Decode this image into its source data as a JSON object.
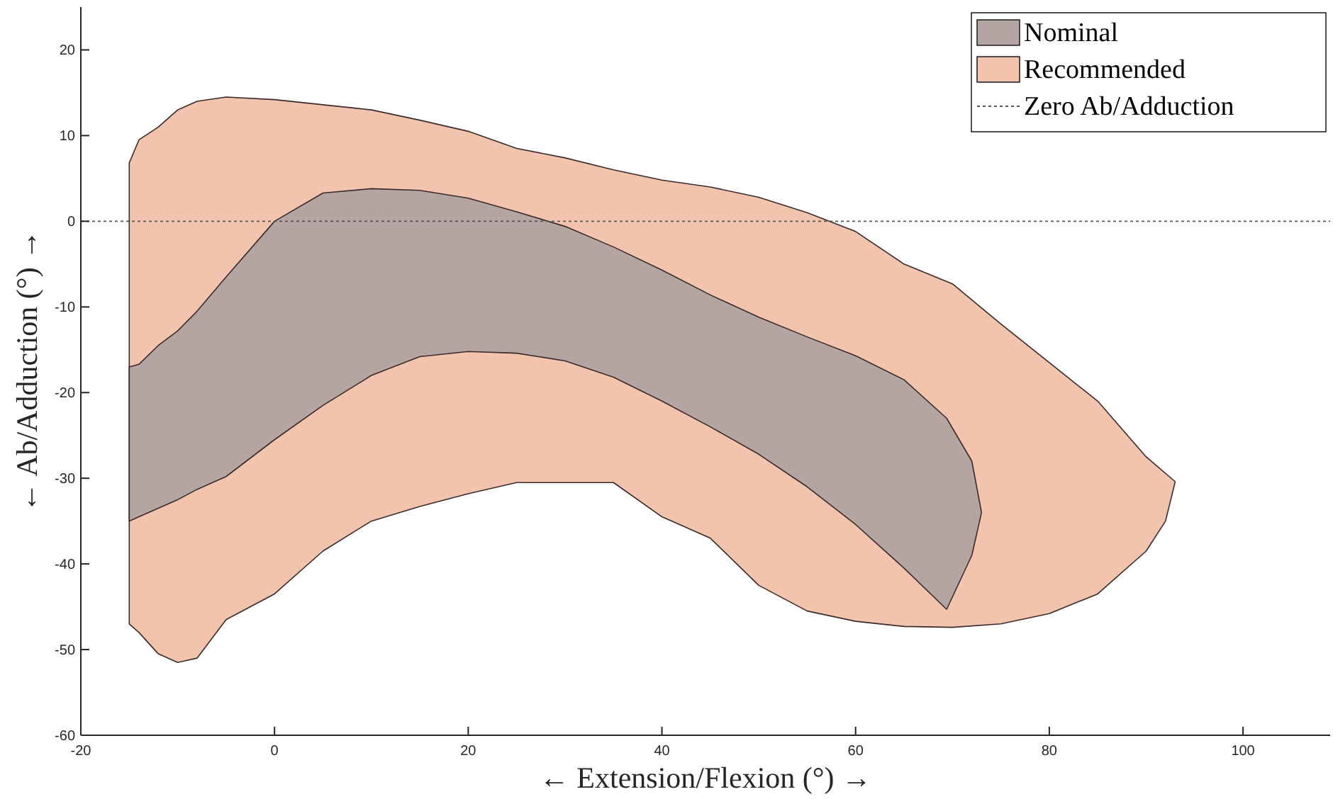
{
  "chart_data": {
    "type": "area",
    "xlabel": "← Extension/Flexion (°) →",
    "ylabel": "← Ab/Adduction (°) →",
    "xlim": [
      -20,
      109
    ],
    "xticks": [
      -20,
      0,
      20,
      40,
      60,
      80,
      100
    ],
    "ylim": [
      -60,
      25
    ],
    "yticks": [
      -60,
      -50,
      -40,
      -30,
      -20,
      -10,
      0,
      10,
      20
    ],
    "legend": "top right",
    "series": [
      {
        "name": "Nominal",
        "color": "#b5a5a2",
        "x": [
          -15,
          -14,
          -12,
          -10,
          -8,
          -5,
          0,
          5,
          10,
          15,
          20,
          25,
          30,
          35,
          40,
          45,
          50,
          55,
          60,
          65,
          69.4,
          72,
          73,
          72,
          69.4,
          65,
          60,
          55,
          50,
          45,
          40,
          35,
          30,
          25,
          20,
          15,
          10,
          5,
          0,
          -5,
          -8,
          -10,
          -12,
          -14,
          -15
        ],
        "values": [
          -17,
          -16.7,
          -14.5,
          -12.8,
          -10.5,
          -6.5,
          0,
          3.3,
          3.8,
          3.6,
          2.7,
          1.1,
          -0.6,
          -3,
          -5.7,
          -8.6,
          -11.2,
          -13.5,
          -15.7,
          -18.5,
          -23,
          -28,
          -34,
          -39,
          -45.3,
          -40.5,
          -35.4,
          -31,
          -27.2,
          -24,
          -21,
          -18.2,
          -16.3,
          -15.4,
          -15.2,
          -15.8,
          -18,
          -21.5,
          -25.5,
          -29.8,
          -31.3,
          -32.5,
          -33.5,
          -34.5,
          -35
        ]
      },
      {
        "name": "Recommended",
        "color": "#f2c4ae",
        "x": [
          -15,
          -14,
          -12,
          -10,
          -8,
          -5,
          0,
          5,
          10,
          15,
          20,
          25,
          30,
          35,
          40,
          45,
          50,
          55,
          60,
          65,
          70,
          75,
          80,
          85,
          90,
          93,
          92,
          90,
          85,
          80,
          75,
          70,
          65,
          60,
          55,
          50,
          45,
          40,
          35,
          30,
          25,
          20,
          15,
          10,
          5,
          0,
          -5,
          -8,
          -10,
          -12,
          -14,
          -15
        ],
        "values": [
          6.8,
          9.5,
          11,
          13,
          14,
          14.5,
          14.2,
          13.6,
          13,
          11.8,
          10.5,
          8.5,
          7.4,
          6,
          4.8,
          4,
          2.8,
          1,
          -1.2,
          -5,
          -7.3,
          -12,
          -16.5,
          -21,
          -27.5,
          -30.4,
          -35,
          -38.5,
          -43.5,
          -45.8,
          -47,
          -47.4,
          -47.3,
          -46.7,
          -45.5,
          -42.5,
          -37,
          -34.5,
          -30.5,
          -30.5,
          -30.5,
          -31.8,
          -33.3,
          -35,
          -38.5,
          -43.5,
          -46.5,
          -51,
          -51.5,
          -50.5,
          -48,
          -47
        ]
      }
    ],
    "ref_lines": [
      {
        "axis": "y",
        "value": 0,
        "label": "Zero Ab/Adduction",
        "color": "#555555",
        "line_style": "dotted"
      }
    ]
  }
}
